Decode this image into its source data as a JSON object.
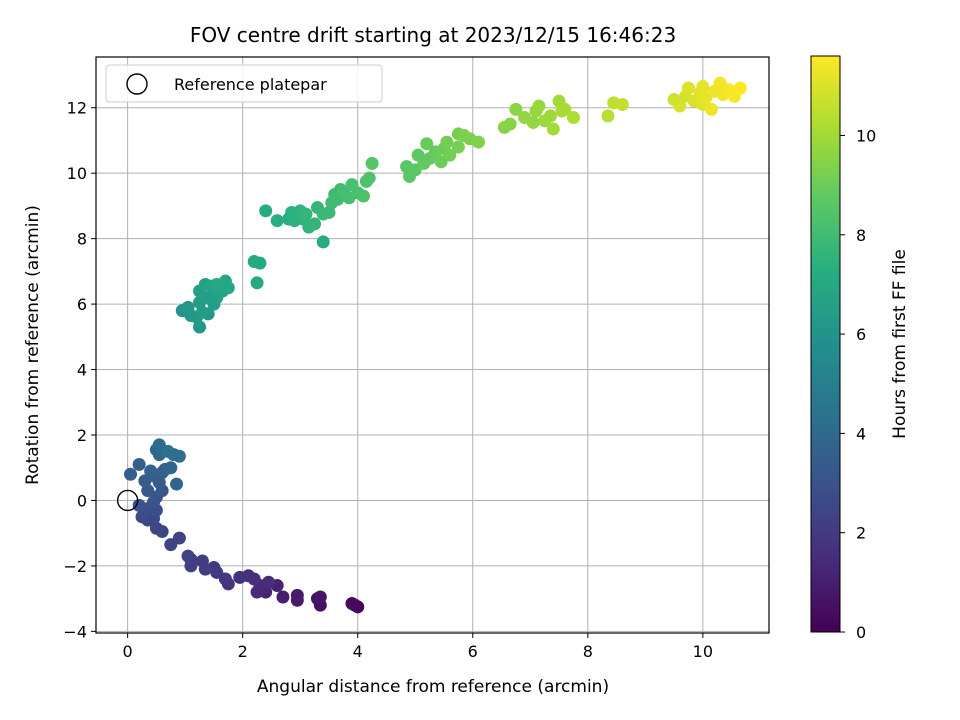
{
  "chart_data": {
    "type": "scatter",
    "title": "FOV centre drift starting at 2023/12/15 16:46:23",
    "xlabel": "Angular distance from reference (arcmin)",
    "ylabel": "Rotation from reference (arcmin)",
    "xlim": [
      -0.55,
      11.15
    ],
    "ylim": [
      -4.05,
      13.55
    ],
    "xticks": [
      0,
      2,
      4,
      6,
      8,
      10
    ],
    "yticks": [
      -4,
      -2,
      0,
      2,
      4,
      6,
      8,
      10,
      12
    ],
    "xtick_labels": [
      "0",
      "2",
      "4",
      "6",
      "8",
      "10"
    ],
    "ytick_labels": [
      "−4",
      "−2",
      "0",
      "2",
      "4",
      "6",
      "8",
      "10",
      "12"
    ],
    "grid": true,
    "legend": {
      "placement": "top-left",
      "entries": [
        "Reference platepar"
      ]
    },
    "reference_point": {
      "x": 0,
      "y": 0
    },
    "colorbar": {
      "label": "Hours from first FF file",
      "colormap": "viridis",
      "range": [
        0,
        11.6
      ],
      "ticks": [
        0,
        2,
        4,
        6,
        8,
        10
      ],
      "tick_labels": [
        "0",
        "2",
        "4",
        "6",
        "8",
        "10"
      ]
    },
    "series": [
      {
        "points": [
          [
            4.0,
            -3.25,
            0.1
          ],
          [
            3.95,
            -3.2,
            0.2
          ],
          [
            3.9,
            -3.15,
            0.3
          ],
          [
            3.35,
            -3.2,
            0.5
          ],
          [
            3.3,
            -3.0,
            0.6
          ],
          [
            3.35,
            -2.95,
            0.7
          ],
          [
            2.95,
            -3.05,
            0.8
          ],
          [
            2.95,
            -2.9,
            0.9
          ],
          [
            2.7,
            -2.95,
            1.0
          ],
          [
            2.6,
            -2.6,
            1.1
          ],
          [
            2.4,
            -2.8,
            1.2
          ],
          [
            2.3,
            -2.6,
            1.3
          ],
          [
            2.25,
            -2.8,
            1.4
          ],
          [
            2.45,
            -2.5,
            1.5
          ],
          [
            2.2,
            -2.4,
            1.5
          ],
          [
            2.1,
            -2.3,
            1.6
          ],
          [
            1.95,
            -2.35,
            1.7
          ],
          [
            1.75,
            -2.55,
            1.8
          ],
          [
            1.7,
            -2.4,
            1.9
          ],
          [
            1.55,
            -2.2,
            2.0
          ],
          [
            1.5,
            -2.05,
            2.0
          ],
          [
            1.35,
            -2.1,
            2.1
          ],
          [
            1.3,
            -1.85,
            2.1
          ],
          [
            1.1,
            -2.0,
            2.2
          ],
          [
            1.1,
            -1.8,
            2.2
          ],
          [
            1.05,
            -1.7,
            2.3
          ],
          [
            0.9,
            -1.15,
            2.3
          ],
          [
            0.75,
            -1.35,
            2.4
          ],
          [
            0.6,
            -0.95,
            2.5
          ],
          [
            0.5,
            -0.85,
            2.5
          ],
          [
            0.45,
            -0.55,
            2.6
          ],
          [
            0.35,
            -0.6,
            2.6
          ],
          [
            0.25,
            -0.5,
            2.7
          ],
          [
            0.5,
            -0.3,
            2.8
          ],
          [
            0.35,
            -0.25,
            2.8
          ],
          [
            0.2,
            -0.15,
            2.9
          ],
          [
            0.45,
            -0.05,
            3.0
          ],
          [
            0.5,
            0.1,
            3.1
          ],
          [
            0.6,
            0.3,
            3.2
          ],
          [
            0.35,
            0.3,
            3.2
          ],
          [
            0.55,
            0.55,
            3.3
          ],
          [
            0.3,
            0.6,
            3.4
          ],
          [
            0.05,
            0.8,
            3.5
          ],
          [
            0.45,
            0.75,
            3.5
          ],
          [
            0.6,
            0.85,
            3.6
          ],
          [
            0.2,
            1.1,
            3.6
          ],
          [
            0.65,
            0.95,
            3.7
          ],
          [
            0.4,
            0.9,
            3.7
          ],
          [
            0.85,
            0.5,
            3.8
          ],
          [
            0.75,
            1.0,
            3.8
          ],
          [
            0.5,
            1.55,
            3.9
          ],
          [
            0.55,
            1.4,
            3.9
          ],
          [
            0.8,
            1.4,
            4.0
          ],
          [
            0.55,
            1.7,
            4.1
          ],
          [
            0.9,
            1.35,
            4.2
          ],
          [
            0.7,
            1.5,
            4.2
          ],
          [
            0.95,
            5.8,
            6.0
          ],
          [
            1.1,
            5.65,
            6.1
          ],
          [
            1.05,
            5.9,
            6.2
          ],
          [
            1.25,
            5.3,
            6.2
          ],
          [
            1.2,
            5.6,
            6.3
          ],
          [
            1.4,
            5.7,
            6.3
          ],
          [
            1.3,
            5.75,
            6.4
          ],
          [
            1.25,
            6.05,
            6.4
          ],
          [
            1.35,
            6.2,
            6.5
          ],
          [
            1.5,
            6.0,
            6.5
          ],
          [
            1.55,
            6.2,
            6.6
          ],
          [
            1.25,
            6.4,
            6.6
          ],
          [
            1.35,
            6.6,
            6.7
          ],
          [
            1.5,
            6.45,
            6.7
          ],
          [
            1.45,
            6.55,
            6.8
          ],
          [
            1.65,
            6.4,
            6.8
          ],
          [
            1.7,
            6.7,
            6.9
          ],
          [
            1.75,
            6.5,
            6.9
          ],
          [
            1.55,
            6.6,
            7.0
          ],
          [
            2.25,
            6.65,
            7.0
          ],
          [
            2.2,
            7.3,
            7.1
          ],
          [
            2.3,
            7.25,
            7.1
          ],
          [
            3.4,
            7.9,
            7.2
          ],
          [
            2.4,
            8.85,
            7.2
          ],
          [
            2.6,
            8.55,
            7.3
          ],
          [
            2.8,
            8.6,
            7.3
          ],
          [
            2.9,
            8.55,
            7.4
          ],
          [
            2.85,
            8.8,
            7.4
          ],
          [
            3.05,
            8.6,
            7.5
          ],
          [
            3.0,
            8.85,
            7.5
          ],
          [
            3.15,
            8.35,
            7.6
          ],
          [
            3.25,
            8.45,
            7.6
          ],
          [
            3.1,
            8.75,
            7.7
          ],
          [
            3.3,
            8.95,
            7.7
          ],
          [
            3.4,
            8.75,
            7.8
          ],
          [
            3.5,
            8.8,
            7.8
          ],
          [
            3.55,
            9.1,
            7.9
          ],
          [
            3.6,
            9.35,
            7.9
          ],
          [
            3.7,
            9.5,
            8.0
          ],
          [
            3.65,
            9.2,
            8.0
          ],
          [
            3.75,
            9.45,
            8.1
          ],
          [
            3.85,
            9.25,
            8.1
          ],
          [
            3.9,
            9.65,
            8.2
          ],
          [
            4.0,
            9.4,
            8.2
          ],
          [
            4.1,
            9.3,
            8.3
          ],
          [
            4.15,
            9.75,
            8.3
          ],
          [
            4.2,
            9.85,
            8.4
          ],
          [
            4.25,
            10.3,
            8.5
          ],
          [
            4.85,
            10.2,
            8.6
          ],
          [
            4.9,
            9.9,
            8.6
          ],
          [
            5.0,
            10.1,
            8.7
          ],
          [
            5.05,
            10.55,
            8.7
          ],
          [
            5.15,
            10.3,
            8.8
          ],
          [
            5.25,
            10.45,
            8.8
          ],
          [
            5.2,
            10.9,
            8.9
          ],
          [
            5.35,
            10.65,
            8.9
          ],
          [
            5.45,
            10.35,
            9.0
          ],
          [
            5.5,
            10.75,
            9.0
          ],
          [
            5.55,
            10.95,
            9.1
          ],
          [
            5.6,
            10.55,
            9.1
          ],
          [
            5.75,
            10.8,
            9.2
          ],
          [
            5.75,
            11.2,
            9.2
          ],
          [
            5.85,
            11.15,
            9.3
          ],
          [
            5.95,
            11.05,
            9.3
          ],
          [
            6.1,
            10.95,
            9.4
          ],
          [
            6.55,
            11.4,
            9.5
          ],
          [
            6.65,
            11.5,
            9.5
          ],
          [
            6.75,
            11.95,
            9.6
          ],
          [
            6.9,
            11.7,
            9.7
          ],
          [
            7.05,
            11.55,
            9.7
          ],
          [
            7.1,
            11.9,
            9.8
          ],
          [
            7.15,
            12.05,
            9.8
          ],
          [
            7.25,
            11.6,
            9.9
          ],
          [
            7.35,
            11.75,
            9.9
          ],
          [
            7.4,
            11.35,
            10.0
          ],
          [
            7.5,
            12.2,
            10.0
          ],
          [
            7.55,
            11.9,
            10.1
          ],
          [
            7.6,
            11.95,
            10.1
          ],
          [
            7.75,
            11.7,
            10.2
          ],
          [
            8.35,
            11.75,
            10.4
          ],
          [
            8.45,
            12.15,
            10.5
          ],
          [
            8.6,
            12.1,
            10.6
          ],
          [
            9.5,
            12.25,
            10.8
          ],
          [
            9.6,
            12.05,
            10.9
          ],
          [
            9.7,
            12.35,
            10.9
          ],
          [
            9.75,
            12.6,
            11.0
          ],
          [
            9.85,
            12.2,
            11.0
          ],
          [
            9.95,
            12.45,
            11.1
          ],
          [
            10.0,
            12.1,
            11.1
          ],
          [
            10.0,
            12.65,
            11.2
          ],
          [
            10.05,
            12.3,
            11.2
          ],
          [
            10.15,
            11.95,
            11.3
          ],
          [
            10.2,
            12.5,
            11.3
          ],
          [
            10.3,
            12.75,
            11.4
          ],
          [
            10.35,
            12.4,
            11.4
          ],
          [
            10.45,
            12.55,
            11.5
          ],
          [
            10.55,
            12.35,
            11.5
          ],
          [
            10.65,
            12.6,
            11.6
          ]
        ]
      }
    ]
  }
}
